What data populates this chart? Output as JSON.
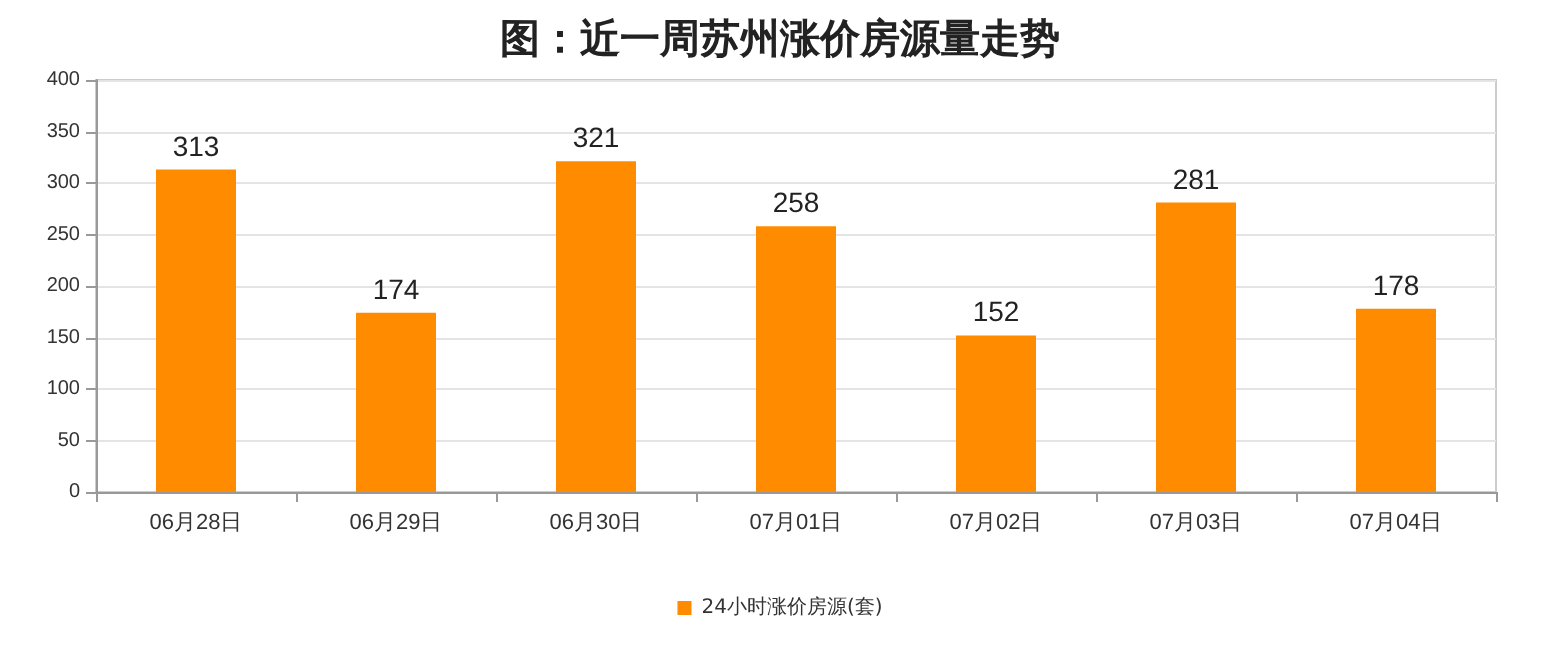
{
  "chart_data": {
    "type": "bar",
    "title": "图：近一周苏州涨价房源量走势",
    "categories": [
      "06月28日",
      "06月29日",
      "06月30日",
      "07月01日",
      "07月02日",
      "07月03日",
      "07月04日"
    ],
    "series": [
      {
        "name": "24小时涨价房源(套)",
        "color": "#ff8c00",
        "values": [
          313,
          174,
          321,
          258,
          152,
          281,
          178
        ]
      }
    ],
    "ylim": [
      0,
      400
    ],
    "yticks": [
      0,
      50,
      100,
      150,
      200,
      250,
      300,
      350,
      400
    ],
    "grid": "y",
    "legend": "bottom",
    "data_labels": true
  }
}
